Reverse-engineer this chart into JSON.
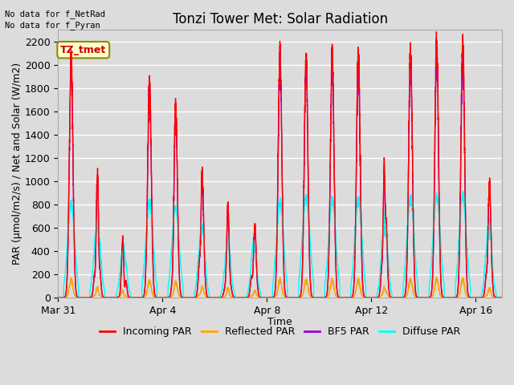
{
  "title": "Tonzi Tower Met: Solar Radiation",
  "xlabel": "Time",
  "ylabel": "PAR (μmol/m2/s) / Net and Solar (W/m2)",
  "annotation1": "No data for f_NetRad",
  "annotation2": "No data for f_Pyran",
  "tag_label": "TZ_tmet",
  "tag_facecolor": "#FFFFCC",
  "tag_edgecolor": "#8B8B00",
  "tag_textcolor": "#CC0000",
  "ylim": [
    0,
    2300
  ],
  "yticks": [
    0,
    200,
    400,
    600,
    800,
    1000,
    1200,
    1400,
    1600,
    1800,
    2000,
    2200
  ],
  "xtick_labels": [
    "Mar 31",
    "Apr 4",
    "Apr 8",
    "Apr 12",
    "Apr 16"
  ],
  "xtick_positions": [
    0,
    4,
    8,
    12,
    16
  ],
  "xlim": [
    0,
    17
  ],
  "series": {
    "incoming_par": {
      "color": "#FF0000",
      "label": "Incoming PAR",
      "lw": 1.0
    },
    "reflected_par": {
      "color": "#FFA500",
      "label": "Reflected PAR",
      "lw": 1.0
    },
    "bf5_par": {
      "color": "#9900CC",
      "label": "BF5 PAR",
      "lw": 1.0
    },
    "diffuse_par": {
      "color": "#00FFFF",
      "label": "Diffuse PAR",
      "lw": 1.0
    }
  },
  "plot_bg_color": "#DCDCDC",
  "grid_color": "#FFFFFF",
  "title_fontsize": 12,
  "axis_label_fontsize": 9,
  "tick_fontsize": 9,
  "legend_fontsize": 9,
  "points_per_day": 288
}
